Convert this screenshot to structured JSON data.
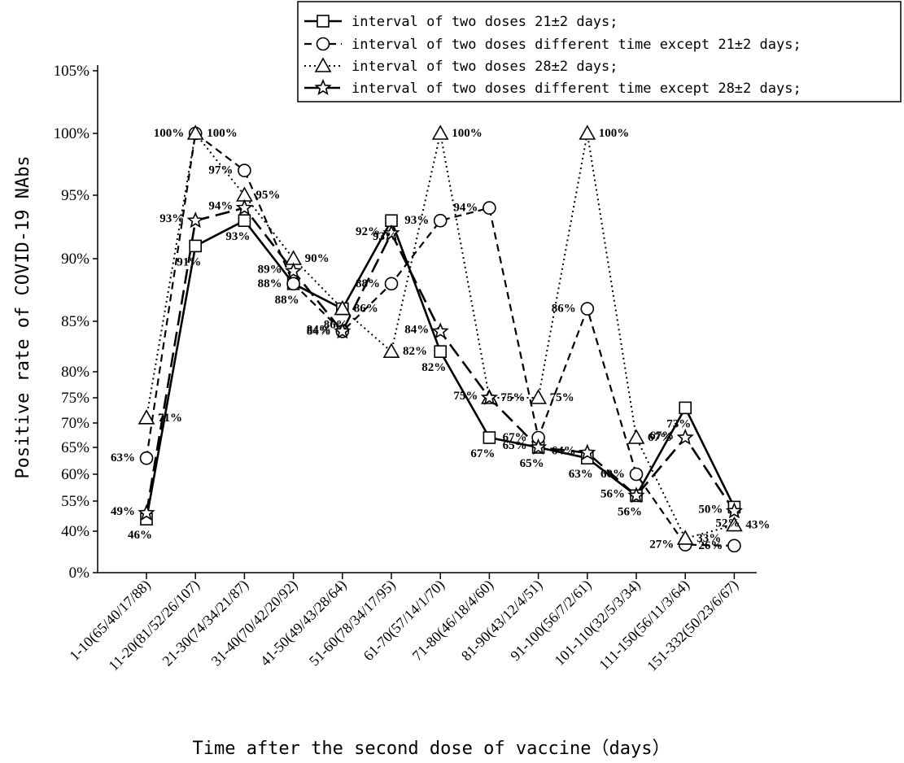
{
  "chart_data": {
    "type": "line",
    "xlabel": "Time after the second dose of vaccine（days）",
    "ylabel": "Positive rate of  COVID-19 NAbs",
    "y_ticks": [
      "0%",
      "40%",
      "55%",
      "60%",
      "65%",
      "70%",
      "75%",
      "80%",
      "85%",
      "90%",
      "95%",
      "100%",
      "105%"
    ],
    "y_tick_values": [
      0,
      40,
      55,
      60,
      65,
      70,
      75,
      80,
      85,
      90,
      95,
      100,
      105
    ],
    "ylim": [
      0,
      105
    ],
    "grid": false,
    "legend_position": "top-right",
    "categories": [
      "1-10(65/40/17/88)",
      "11-20(81/52/26/107)",
      "21-30(74/34/21/87)",
      "31-40(70/42/20/92)",
      "41-50(49/43/28/64)",
      "51-60(78/34/17/95)",
      "61-70(57/14/1/70)",
      "71-80(46/18/4/60)",
      "81-90(43/12/4/51)",
      "91-100(56/7/2/61)",
      "101-110(32/5/3/34)",
      "111-150(56/11/3/64)",
      "151-332(50/23/6/67)"
    ],
    "series": [
      {
        "name": "interval of two doses 21±2 days;",
        "marker": "square",
        "dash": "solid-dash",
        "values": [
          46,
          91,
          93,
          88,
          86,
          93,
          82,
          67,
          65,
          63,
          56,
          73,
          52
        ],
        "labels": [
          "46%",
          "91%",
          "93%",
          "88%",
          "86%",
          "93%",
          "82%",
          "67%",
          "65%",
          "63%",
          "56%",
          "73%",
          "52%"
        ]
      },
      {
        "name": "interval of two doses different time except 21±2 days;",
        "marker": "circle",
        "dash": "dashed",
        "values": [
          63,
          100,
          97,
          88,
          84,
          88,
          93,
          94,
          67,
          86,
          60,
          27,
          26
        ],
        "labels": [
          "63%",
          "100%",
          "97%",
          "88%",
          "84%",
          "88%",
          "93%",
          "94%",
          "67%",
          "86%",
          "60%",
          "27%",
          "26%"
        ]
      },
      {
        "name": "interval of two doses 28±2 days;",
        "marker": "triangle",
        "dash": "dotted",
        "values": [
          71,
          100,
          95,
          90,
          86,
          82,
          100,
          75,
          75,
          100,
          67,
          33,
          43
        ],
        "labels": [
          "71%",
          "100%",
          "95%",
          "90%",
          "86%",
          "82%",
          "100%",
          "75%",
          "75%",
          "100%",
          "67%",
          "33%",
          "43%"
        ]
      },
      {
        "name": "interval of two doses different time except 28±2 days;",
        "marker": "star",
        "dash": "long-dash",
        "values": [
          49,
          93,
          94,
          89,
          84,
          92,
          84,
          75,
          65,
          64,
          56,
          67,
          50
        ],
        "labels": [
          "49%",
          "93%",
          "94%",
          "89%",
          "84%",
          "92%",
          "84%",
          "75%",
          "65%",
          "64%",
          "56%",
          "67%",
          "50%"
        ]
      }
    ]
  }
}
